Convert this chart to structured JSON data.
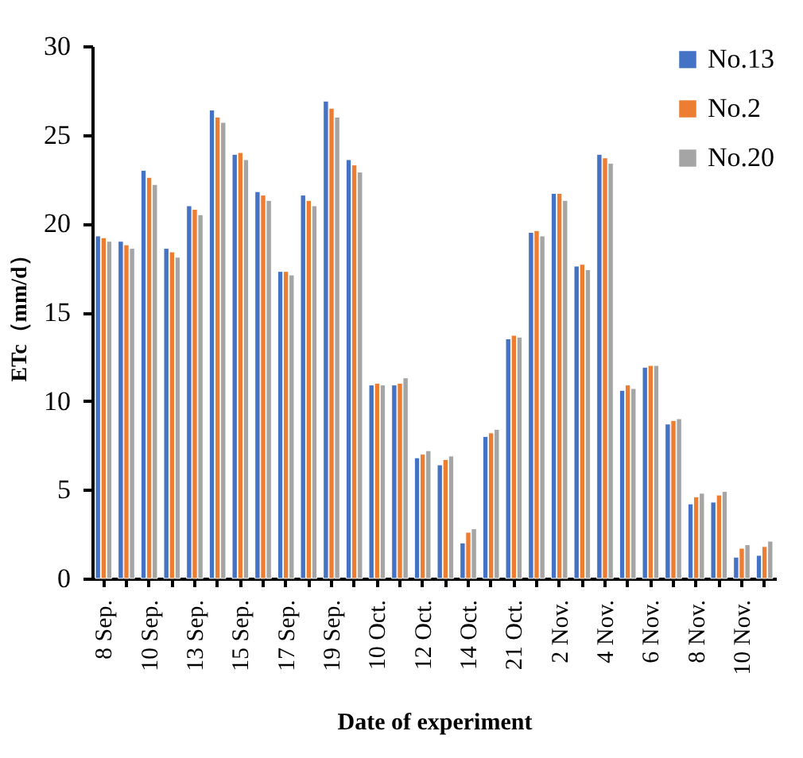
{
  "chart_data": {
    "type": "bar",
    "xlabel": "Date of experiment",
    "ylabel": "ETc（mm/d）",
    "categories": [
      "8 Sep.",
      null,
      "10 Sep.",
      null,
      "13 Sep.",
      null,
      "15 Sep.",
      null,
      "17 Sep.",
      null,
      "19 Sep.",
      null,
      "10 Oct.",
      null,
      "12 Oct.",
      null,
      "14 Oct.",
      null,
      "21 Oct.",
      null,
      "2 Nov.",
      null,
      "4 Nov.",
      null,
      "6 Nov.",
      null,
      "8 Nov.",
      null,
      "10 Nov.",
      null
    ],
    "series": [
      {
        "name": "No.13",
        "color": "#4472c4",
        "values": [
          19.3,
          19.0,
          23.0,
          18.6,
          21.0,
          26.4,
          23.9,
          21.8,
          17.3,
          21.6,
          26.9,
          23.6,
          10.9,
          10.9,
          6.8,
          6.4,
          2.0,
          8.0,
          13.5,
          19.5,
          21.7,
          17.6,
          23.9,
          10.6,
          11.9,
          8.7,
          4.2,
          4.3,
          1.2,
          1.3
        ]
      },
      {
        "name": "No.2",
        "color": "#ed7d31",
        "values": [
          19.2,
          18.8,
          22.6,
          18.4,
          20.8,
          26.0,
          24.0,
          21.6,
          17.3,
          21.3,
          26.5,
          23.3,
          11.0,
          11.0,
          7.0,
          6.7,
          2.6,
          8.2,
          13.7,
          19.6,
          21.7,
          17.7,
          23.7,
          10.9,
          12.0,
          8.9,
          4.6,
          4.7,
          1.7,
          1.8
        ]
      },
      {
        "name": "No.20",
        "color": "#a5a5a5",
        "values": [
          19.0,
          18.6,
          22.2,
          18.1,
          20.5,
          25.7,
          23.6,
          21.3,
          17.1,
          21.0,
          26.0,
          22.9,
          10.9,
          11.3,
          7.2,
          6.9,
          2.8,
          8.4,
          13.6,
          19.3,
          21.3,
          17.4,
          23.4,
          10.7,
          12.0,
          9.0,
          4.8,
          4.9,
          1.9,
          2.1
        ]
      }
    ],
    "ylim": [
      0,
      30
    ],
    "yticks": [
      0,
      5,
      10,
      15,
      20,
      25,
      30
    ],
    "grid": false,
    "legend": "top right"
  }
}
